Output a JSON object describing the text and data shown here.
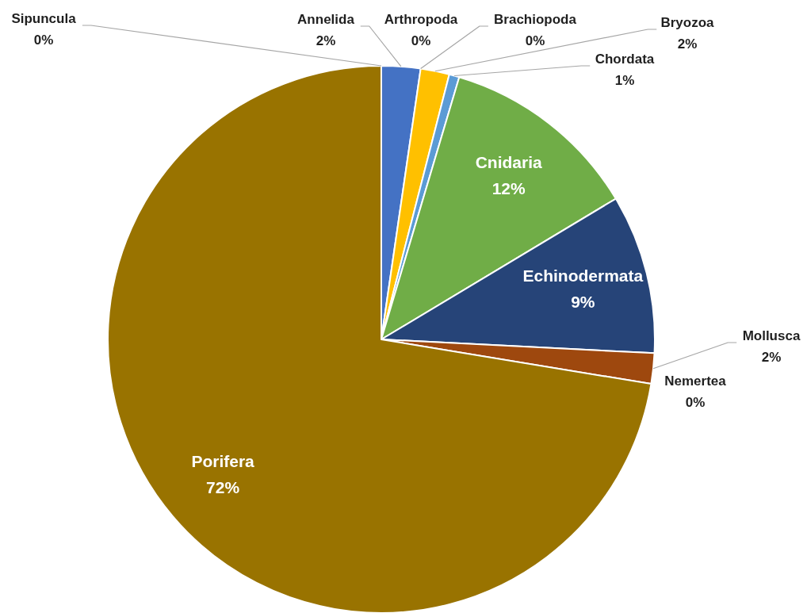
{
  "chart_data": {
    "type": "pie",
    "categories": [
      "Annelida",
      "Arthropoda",
      "Brachiopoda",
      "Bryozoa",
      "Chordata",
      "Cnidaria",
      "Echinodermata",
      "Mollusca",
      "Nemertea",
      "Porifera",
      "Sipuncula"
    ],
    "values": [
      2.3,
      0,
      0,
      1.7,
      0.6,
      11.8,
      9.4,
      1.8,
      0,
      72.4,
      0
    ],
    "colors": [
      "#4472c4",
      null,
      null,
      "#ffc000",
      "#5b9bd5",
      "#70ad47",
      "#264478",
      "#9e480e",
      null,
      "#997300",
      null
    ],
    "value_labels": [
      "2%",
      "0%",
      "0%",
      "2%",
      "1%",
      "12%",
      "9%",
      "2%",
      "0%",
      "72%",
      "0%"
    ]
  }
}
